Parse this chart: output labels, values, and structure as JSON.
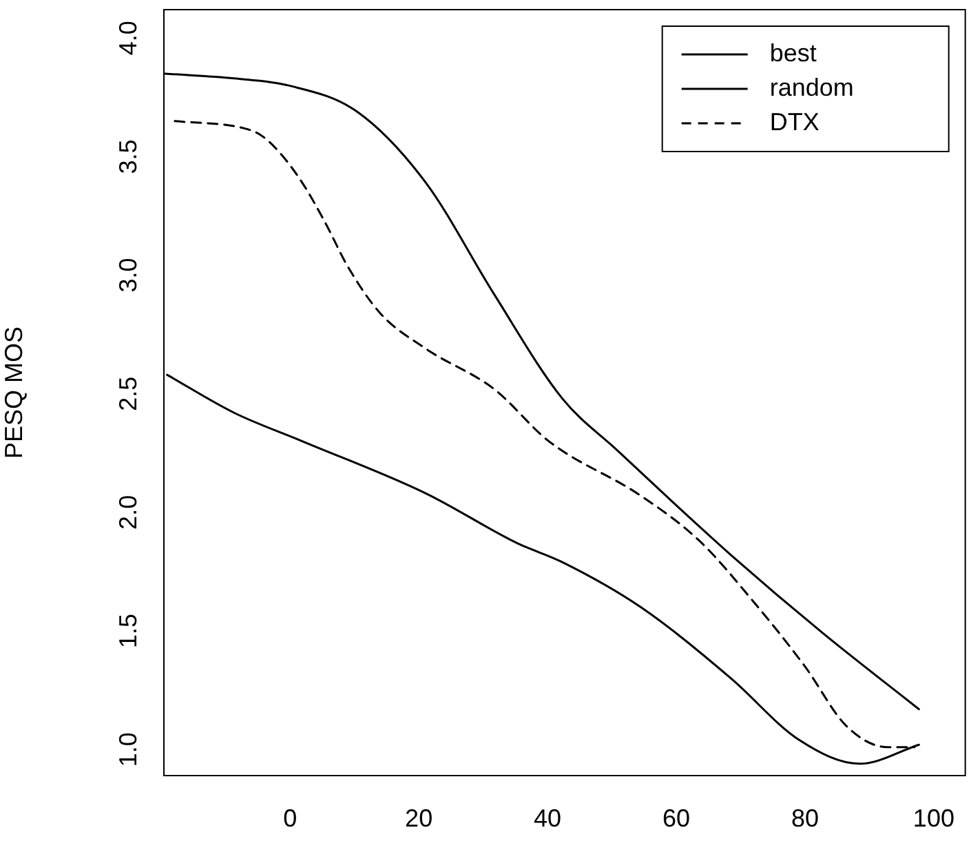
{
  "chart_data": {
    "type": "line",
    "ylabel": "PESQ MOS",
    "xlim": [
      -19.6,
      104.9
    ],
    "xticks": [
      0,
      20,
      40,
      60,
      80,
      100
    ],
    "ylim": [
      0.89,
      4.12
    ],
    "yticks": [
      {
        "value": 1,
        "label": "1.0"
      },
      {
        "value": 1.5,
        "label": "1.5"
      },
      {
        "value": 2,
        "label": "2.0"
      },
      {
        "value": 2.5,
        "label": "2.5"
      },
      {
        "value": 3,
        "label": "3.0"
      },
      {
        "value": 3.5,
        "label": "3.5"
      },
      {
        "value": 4,
        "label": "4.0"
      }
    ],
    "grid": false,
    "legend": "top right",
    "marker": "none",
    "series": [
      {
        "name": "best",
        "color": "#000000",
        "line_style": "solid",
        "x": [
          -19.4,
          -8.7,
          -0.2,
          10.4,
          21.1,
          31.7,
          42.3,
          50.9,
          60,
          68.5,
          82.8,
          97.7
        ],
        "values": [
          3.85,
          3.83,
          3.8,
          3.69,
          3.39,
          2.92,
          2.48,
          2.26,
          2.03,
          1.82,
          1.49,
          1.17
        ]
      },
      {
        "name": "random",
        "color": "#000000",
        "line_style": "solid",
        "x": [
          -19.1,
          -8.7,
          1.9,
          21.1,
          35.3,
          42.3,
          54.5,
          68.5,
          79.1,
          88.5,
          97.7
        ],
        "values": [
          2.58,
          2.42,
          2.3,
          2.08,
          1.87,
          1.79,
          1.6,
          1.3,
          1.04,
          0.94,
          1.02
        ]
      },
      {
        "name": "DTX",
        "color": "#000000",
        "line_style": "dashed",
        "x": [
          -17.9,
          -7.2,
          -4.5,
          -1.7,
          1.9,
          5.5,
          8.9,
          14,
          21.1,
          31.7,
          40.2,
          54.5,
          63.6,
          72.1,
          80,
          86.4,
          92.8,
          97
        ],
        "values": [
          3.65,
          3.62,
          3.59,
          3.52,
          3.39,
          3.22,
          3.04,
          2.84,
          2.69,
          2.52,
          2.3,
          2.07,
          1.88,
          1.62,
          1.35,
          1.1,
          1.01,
          1.01
        ]
      }
    ]
  }
}
